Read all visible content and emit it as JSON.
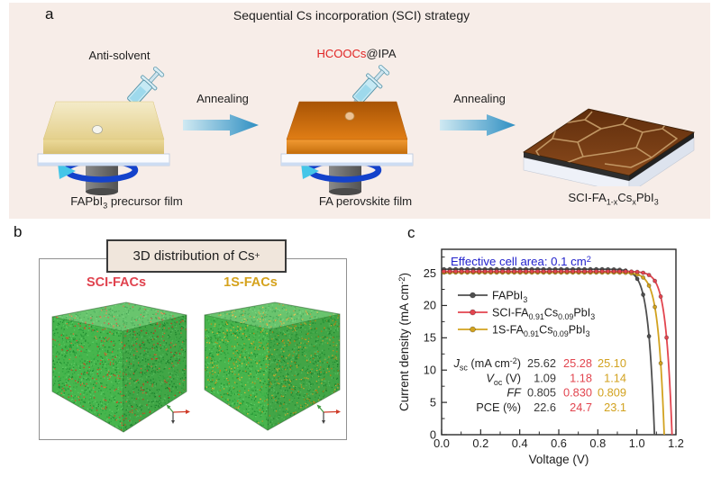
{
  "panel_a": {
    "label": "a",
    "title": "Sequential Cs incorporation (SCI) strategy",
    "anti_solvent_label": "Anti-solvent",
    "hcoocs_label": "HCOOCs",
    "ipa_label": "@IPA",
    "annealing_label_1": "Annealing",
    "annealing_label_2": "Annealing",
    "film_1_label": "FAPbI_{3} precursor film",
    "film_2_label": "FA perovskite film",
    "film_3_label": "SCI-FA_{1-x}Cs_{x}PbI_{3}",
    "colors": {
      "background": "#f7ede8",
      "hcoocs_red": "#e02424",
      "arrow_blue": "#3e95c0"
    }
  },
  "panel_b": {
    "label": "b",
    "title": "3D distribution of Cs^{+}",
    "cubes": [
      {
        "label": "SCI-FACs",
        "label_color": "#e0424e",
        "base_color": "#49b94f",
        "green_shades": [
          "#3cb84a",
          "#2ea23d",
          "#5fcf66",
          "#1f8f31"
        ],
        "accent_colors": [
          "#e4502a",
          "#d93b1f",
          "#ef7433"
        ],
        "accent_ratio": 0.13
      },
      {
        "label": "1S-FACs",
        "label_color": "#d5a21c",
        "base_color": "#4ab84f",
        "green_shades": [
          "#3cb84a",
          "#2ea23d",
          "#5fcf66",
          "#1f8f31"
        ],
        "accent_colors": [
          "#d9a31f",
          "#e9ba32",
          "#c68a16"
        ],
        "accent_ratio": 0.2
      }
    ]
  },
  "panel_c": {
    "label": "c"
  },
  "chart_data": {
    "type": "line",
    "title": "",
    "annotation": {
      "text": "Effective cell area: 0.1 cm^{2}",
      "color": "#2323cc"
    },
    "xlabel": "Voltage (V)",
    "ylabel": "Current density (mA cm^{-2})",
    "xlim": [
      0,
      1.2
    ],
    "ylim": [
      0,
      28.7
    ],
    "xticks": [
      "0.0",
      "0.2",
      "0.4",
      "0.6",
      "0.8",
      "1.0",
      "1.2"
    ],
    "yticks": [
      "0",
      "5",
      "10",
      "15",
      "20",
      "25"
    ],
    "grid": false,
    "legend_position": "upper left inside",
    "series": [
      {
        "name": "FAPbI_{3}",
        "color": "#4f4f4f",
        "jsc": 25.62,
        "voc": 1.09,
        "ff": 0.805,
        "pce": 22.6
      },
      {
        "name": "SCI-FA_{0.91}Cs_{0.09}PbI_{3}",
        "color": "#e2454f",
        "jsc": 25.28,
        "voc": 1.18,
        "ff": 0.83,
        "pce": 24.7
      },
      {
        "name": "1S-FA_{0.91}Cs_{0.09}PbI_{3}",
        "color": "#d2a21f",
        "jsc": 25.1,
        "voc": 1.14,
        "ff": 0.809,
        "pce": 23.1
      }
    ],
    "table": {
      "value_colors": [
        "#3a3a3a",
        "#e2454f",
        "#d2a21f"
      ],
      "rows": [
        {
          "label": "*J*_{sc} (mA cm^{-2})",
          "values": [
            "25.62",
            "25.28",
            "25.10"
          ]
        },
        {
          "label": "*V*_{oc} (V)",
          "values": [
            "1.09",
            "1.18",
            "1.14"
          ]
        },
        {
          "label": "*FF*",
          "values": [
            "0.805",
            "0.830",
            "0.809"
          ]
        },
        {
          "label": "PCE (%)",
          "values": [
            "22.6",
            "24.7",
            "23.1"
          ]
        }
      ]
    }
  }
}
